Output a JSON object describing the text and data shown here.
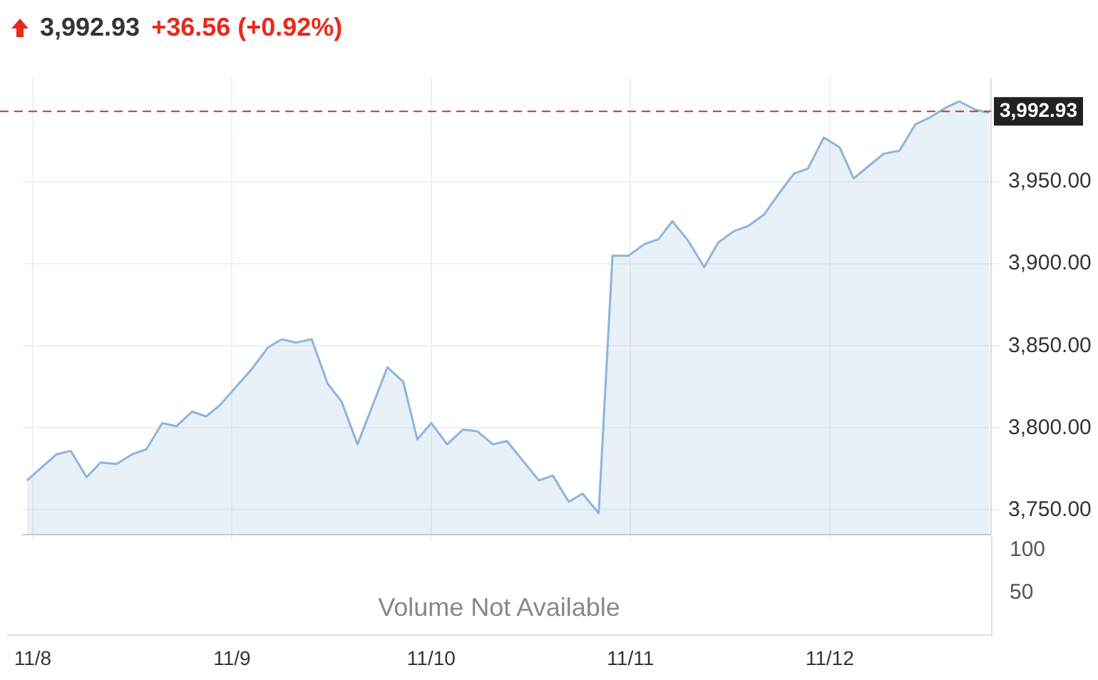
{
  "chart_data": [
    {
      "type": "area",
      "title": "3,992.93",
      "subtitle": "+36.56 (+0.92%)",
      "x": [
        "--11-07T23:17",
        "--11-08T02:53",
        "--11-08T04:34",
        "--11-08T06:29",
        "--11-08T08:10",
        "--11-08T10:05",
        "--11-08T12:00",
        "--11-08T13:41",
        "--11-08T15:36",
        "--11-08T17:17",
        "--11-08T19:12",
        "--11-08T20:53",
        "--11-08T22:34",
        "--11-09T00:29",
        "--11-09T02:24",
        "--11-09T04:19",
        "--11-09T06:00",
        "--11-09T07:41",
        "--11-09T09:36",
        "--11-09T11:31",
        "--11-09T13:12",
        "--11-09T15:07",
        "--11-09T18:43",
        "--11-09T20:38",
        "--11-09T22:19",
        "--11-10T00:00",
        "--11-10T01:55",
        "--11-10T03:50",
        "--11-10T05:31",
        "--11-10T07:26",
        "--11-10T09:07",
        "--11-10T11:02",
        "--11-10T12:58",
        "--11-10T14:38",
        "--11-10T16:34",
        "--11-10T18:14",
        "--11-10T20:10",
        "--11-10T21:50",
        "--11-10T23:46",
        "--11-11T01:41",
        "--11-11T03:22",
        "--11-11T05:02",
        "--11-11T06:58",
        "--11-11T08:53",
        "--11-11T10:34",
        "--11-11T12:29",
        "--11-11T14:10",
        "--11-11T16:05",
        "--11-11T17:46",
        "--11-11T19:41",
        "--11-11T21:22",
        "--11-11T23:17",
        "--11-12T01:12",
        "--11-12T02:53",
        "--11-12T04:48",
        "--11-12T06:29",
        "--11-12T08:24",
        "--11-12T10:19",
        "--11-12T12:00",
        "--11-12T13:55",
        "--11-12T15:36",
        "--11-12T17:31",
        "--11-12T19:12"
      ],
      "series": [
        {
          "color": "#8db4de",
          "values": [
            3768,
            3784,
            3786,
            3770,
            3779,
            3778,
            3784,
            3787,
            3803,
            3801,
            3810,
            3807,
            3814,
            3825,
            3836,
            3849,
            3854,
            3852,
            3854,
            3827,
            3816,
            3790,
            3837,
            3828,
            3793,
            3803,
            3790,
            3799,
            3798,
            3790,
            3792,
            3780,
            3768,
            3771,
            3755,
            3760,
            3748,
            3905,
            3905,
            3912,
            3915,
            3926,
            3914,
            3898,
            3913,
            3920,
            3923,
            3930,
            3942,
            3955,
            3958,
            3977,
            3971,
            3952,
            3960,
            3967,
            3969,
            3985,
            3989,
            3995,
            3999,
            3994,
            3992
          ]
        }
      ],
      "xlim": [
        "--11-07T22:48",
        "--11-12T19:26"
      ],
      "xticks": [
        {
          "value": "--11-08",
          "label": "11/8"
        },
        {
          "value": "--11-09",
          "label": "11/9"
        },
        {
          "value": "--11-10",
          "label": "11/10"
        },
        {
          "value": "--11-11",
          "label": "11/11"
        },
        {
          "value": "--11-12",
          "label": "11/12"
        }
      ],
      "ylim": [
        3735,
        4013
      ],
      "yticks": [
        {
          "value": 3750,
          "label": "3,750.00"
        },
        {
          "value": 3800,
          "label": "3,800.00"
        },
        {
          "value": 3850,
          "label": "3,850.00"
        },
        {
          "value": 3900,
          "label": "3,900.00"
        },
        {
          "value": 3950,
          "label": "3,950.00"
        }
      ],
      "ref_lines": [
        {
          "axis": "y",
          "value": 3992.93,
          "label": "3,992.93",
          "color": "#c0392b",
          "line_style": "dashed"
        }
      ],
      "grid": true,
      "legend": false,
      "marker": "none"
    },
    {
      "type": "other",
      "annotations": [
        "Volume Not Available",
        "100",
        "50"
      ]
    }
  ]
}
